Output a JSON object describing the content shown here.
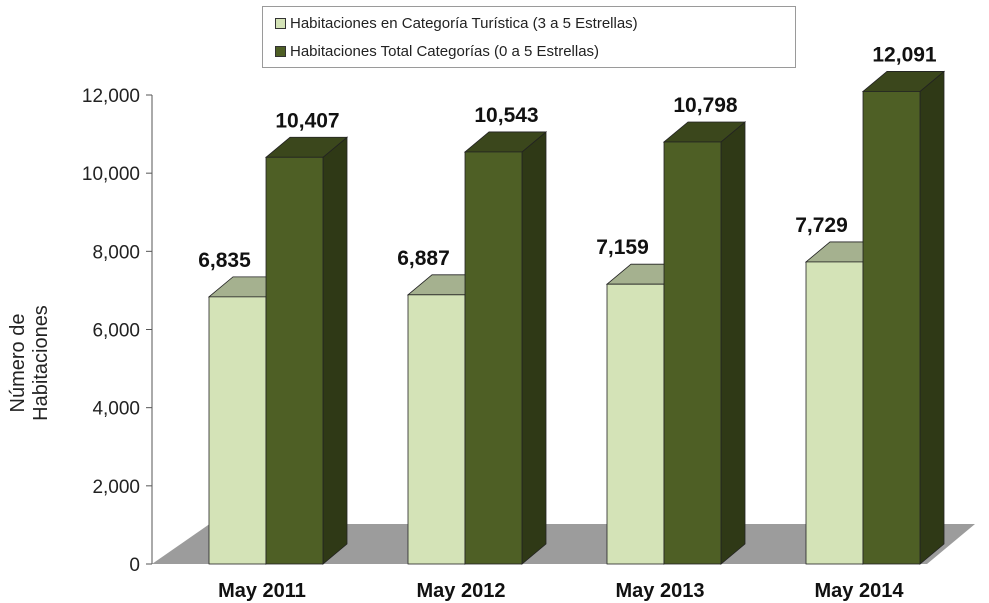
{
  "chart_data": {
    "type": "bar",
    "title": "",
    "xlabel": "",
    "ylabel": "Número de Habitaciones",
    "categories": [
      "May 2011",
      "May 2012",
      "May 2013",
      "May 2014"
    ],
    "series": [
      {
        "name": "Habitaciones en Categoría Turística (3 a 5 Estrellas)",
        "values": [
          6835,
          6887,
          7159,
          7729
        ],
        "color": "#d4e3b7"
      },
      {
        "name": "Habitaciones Total Categorías (0 a 5 Estrellas)",
        "values": [
          10407,
          10543,
          10798,
          12091
        ],
        "color": "#4e5f25"
      }
    ],
    "data_labels": [
      [
        "6,835",
        "6,887",
        "7,159",
        "7,729"
      ],
      [
        "10,407",
        "10,543",
        "10,798",
        "12,091"
      ]
    ],
    "ylim": [
      0,
      12000
    ],
    "yticks": [
      0,
      2000,
      4000,
      6000,
      8000,
      10000,
      12000
    ],
    "ytick_labels": [
      "0",
      "2,000",
      "4,000",
      "6,000",
      "8,000",
      "10,000",
      "12,000"
    ],
    "legend_position": "top-center",
    "grid": false,
    "style": "3d"
  }
}
